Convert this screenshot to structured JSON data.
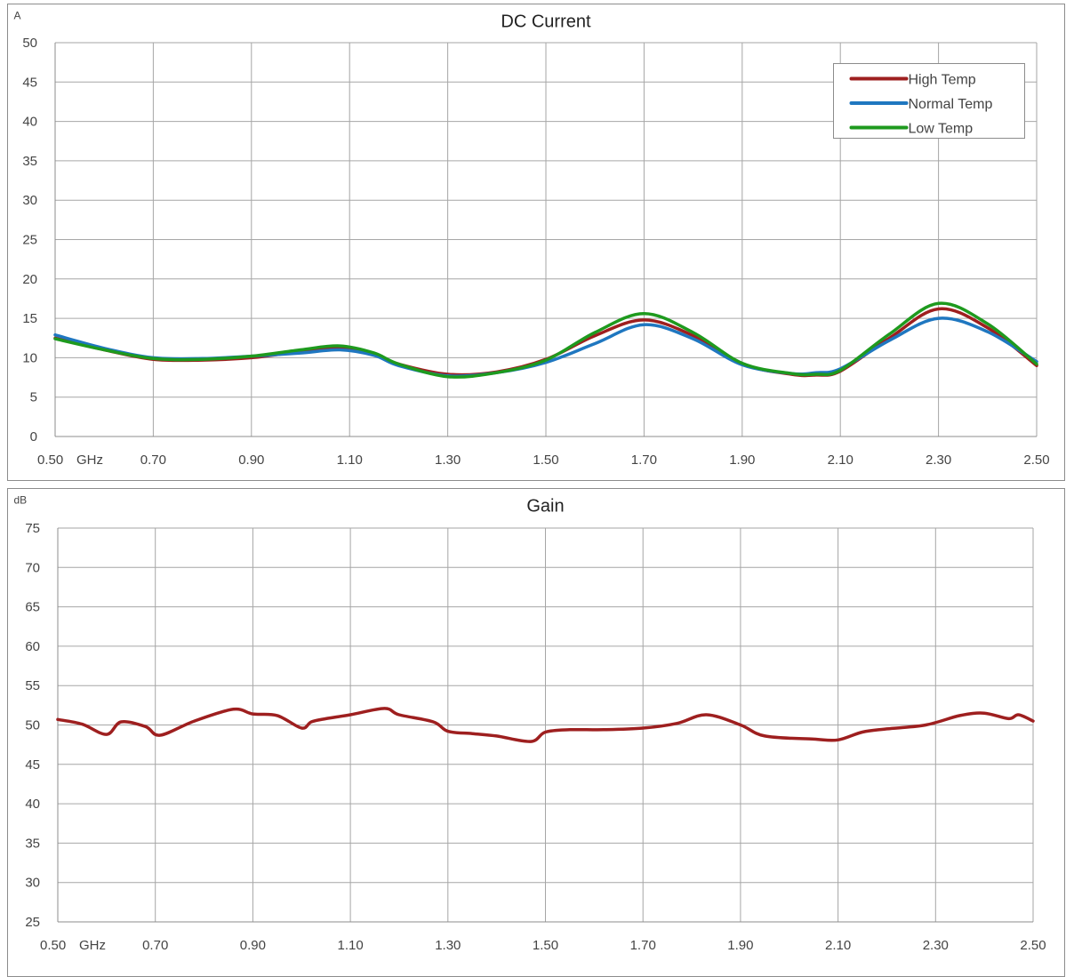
{
  "chart_data": [
    {
      "type": "line",
      "title": "DC Current",
      "ylabel": "A",
      "xunit": "GHz",
      "xlim": [
        0.5,
        2.5
      ],
      "ylim": [
        0,
        50
      ],
      "yticks": [
        0,
        5,
        10,
        15,
        20,
        25,
        30,
        35,
        40,
        45,
        50
      ],
      "xticks": [
        "0.50",
        "0.70",
        "0.90",
        "1.10",
        "1.30",
        "1.50",
        "1.70",
        "1.90",
        "2.10",
        "2.30",
        "2.50"
      ],
      "grid": true,
      "legend": "top-right",
      "x": [
        0.5,
        0.6,
        0.7,
        0.8,
        0.9,
        1.0,
        1.08,
        1.15,
        1.2,
        1.3,
        1.4,
        1.5,
        1.6,
        1.7,
        1.8,
        1.9,
        2.0,
        2.05,
        2.1,
        2.2,
        2.3,
        2.4,
        2.5
      ],
      "series": [
        {
          "name": "High Temp",
          "color": "#9e1f1f",
          "values": [
            12.5,
            11.0,
            9.8,
            9.7,
            10.0,
            10.8,
            11.2,
            10.4,
            9.2,
            7.9,
            8.2,
            9.8,
            12.8,
            14.8,
            12.8,
            9.2,
            7.9,
            7.8,
            8.3,
            12.5,
            16.2,
            13.8,
            9.0
          ]
        },
        {
          "name": "Normal Temp",
          "color": "#1f77c0",
          "values": [
            12.9,
            11.2,
            10.0,
            9.9,
            10.2,
            10.6,
            11.0,
            10.3,
            9.0,
            7.7,
            8.1,
            9.4,
            11.8,
            14.2,
            12.4,
            9.1,
            8.0,
            8.1,
            8.6,
            12.2,
            15.0,
            13.3,
            9.5
          ]
        },
        {
          "name": "Low Temp",
          "color": "#1e9a1e",
          "values": [
            12.4,
            11.0,
            9.9,
            9.8,
            10.2,
            11.0,
            11.5,
            10.6,
            9.2,
            7.6,
            8.1,
            9.7,
            13.2,
            15.6,
            13.2,
            9.3,
            8.0,
            7.9,
            8.4,
            13.0,
            16.9,
            14.3,
            9.2
          ]
        }
      ]
    },
    {
      "type": "line",
      "title": "Gain",
      "ylabel": "dB",
      "xunit": "GHz",
      "xlim": [
        0.5,
        2.5
      ],
      "ylim": [
        25,
        75
      ],
      "yticks": [
        25,
        30,
        35,
        40,
        45,
        50,
        55,
        60,
        65,
        70,
        75
      ],
      "xticks": [
        "0.50",
        "0.70",
        "0.90",
        "1.10",
        "1.30",
        "1.50",
        "1.70",
        "1.90",
        "2.10",
        "2.30",
        "2.50"
      ],
      "grid": true,
      "x": [
        0.5,
        0.55,
        0.6,
        0.63,
        0.68,
        0.71,
        0.78,
        0.86,
        0.9,
        0.95,
        1.0,
        1.02,
        1.05,
        1.1,
        1.17,
        1.2,
        1.27,
        1.3,
        1.35,
        1.4,
        1.47,
        1.5,
        1.55,
        1.62,
        1.7,
        1.77,
        1.83,
        1.9,
        1.95,
        2.05,
        2.1,
        2.15,
        2.2,
        2.28,
        2.35,
        2.4,
        2.45,
        2.47,
        2.5
      ],
      "series": [
        {
          "name": "",
          "color": "#9e1f1f",
          "values": [
            50.7,
            50.1,
            48.8,
            50.4,
            49.8,
            48.7,
            50.5,
            52.0,
            51.4,
            51.2,
            49.6,
            50.4,
            50.8,
            51.3,
            52.1,
            51.3,
            50.4,
            49.2,
            48.9,
            48.6,
            47.9,
            49.1,
            49.4,
            49.4,
            49.6,
            50.2,
            51.3,
            50.0,
            48.6,
            48.2,
            48.1,
            49.1,
            49.5,
            50.0,
            51.2,
            51.5,
            50.8,
            51.3,
            50.5
          ]
        }
      ]
    }
  ]
}
